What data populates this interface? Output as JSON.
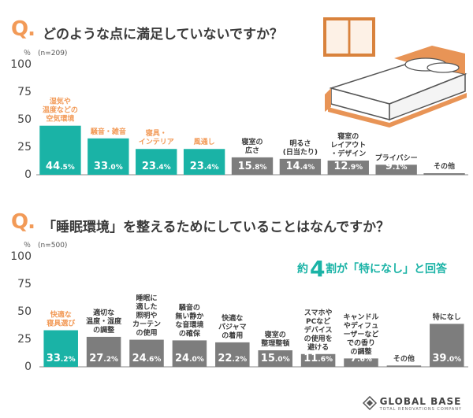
{
  "colors": {
    "accent": "#1ab3a6",
    "gray": "#7d7d7d",
    "orange": "#f29a57",
    "text": "#333333"
  },
  "q_mark": "Q.",
  "chart_data": [
    {
      "type": "bar",
      "title": "どのような点に満足していないですか？",
      "ylabel": "％",
      "sample_note": "(n=209)",
      "ylim": [
        0,
        100
      ],
      "yticks": [
        0,
        25,
        50,
        75,
        100
      ],
      "categories": [
        [
          "湿気や",
          "温度などの",
          "空気環境"
        ],
        [
          "騒音・雑音"
        ],
        [
          "寝具・",
          "インテリア"
        ],
        [
          "風通し"
        ],
        [
          "寝室の",
          "広さ"
        ],
        [
          "明るさ",
          "(日当たり)"
        ],
        [
          "寝室の",
          "レイアウト",
          "・デザイン"
        ],
        [
          "プライバシー"
        ],
        [
          "その他"
        ]
      ],
      "values": [
        44.5,
        33.0,
        23.4,
        23.4,
        15.8,
        14.4,
        12.9,
        9.1,
        1.4
      ],
      "highlight": [
        true,
        true,
        true,
        true,
        false,
        false,
        false,
        false,
        false
      ]
    },
    {
      "type": "bar",
      "title": "「睡眠環境」を整えるためにしていることはなんですか？",
      "ylabel": "％",
      "sample_note": "(n=500)",
      "ylim": [
        0,
        100
      ],
      "yticks": [
        0,
        25,
        50,
        75,
        100
      ],
      "annotation": {
        "prefix": "約",
        "number": "4",
        "suffix": "割が「特になし」と回答"
      },
      "categories": [
        [
          "快適な",
          "寝具選び"
        ],
        [
          "適切な",
          "温度・湿度",
          "の調整"
        ],
        [
          "睡眠に",
          "適した",
          "照明や",
          "カーテン",
          "の使用"
        ],
        [
          "騒音の",
          "無い静か",
          "な音環境",
          "の確保"
        ],
        [
          "快適な",
          "パジャマ",
          "の着用"
        ],
        [
          "寝室の",
          "整理整頓"
        ],
        [
          "スマホや",
          "PCなど",
          "デバイス",
          "の使用を",
          "避ける"
        ],
        [
          "キャンドル",
          "やディフュ",
          "ーザーなど",
          "での香り",
          "の調整"
        ],
        [
          "その他"
        ],
        [
          "特になし"
        ]
      ],
      "values": [
        33.2,
        27.2,
        24.6,
        24.0,
        22.2,
        15.0,
        11.6,
        7.6,
        1.2,
        39.0
      ],
      "highlight": [
        true,
        false,
        false,
        false,
        false,
        false,
        false,
        false,
        false,
        false
      ]
    }
  ],
  "brand": {
    "name": "GLOBAL BASE",
    "tagline": "TOTAL RENOVATIONS COMPANY"
  }
}
